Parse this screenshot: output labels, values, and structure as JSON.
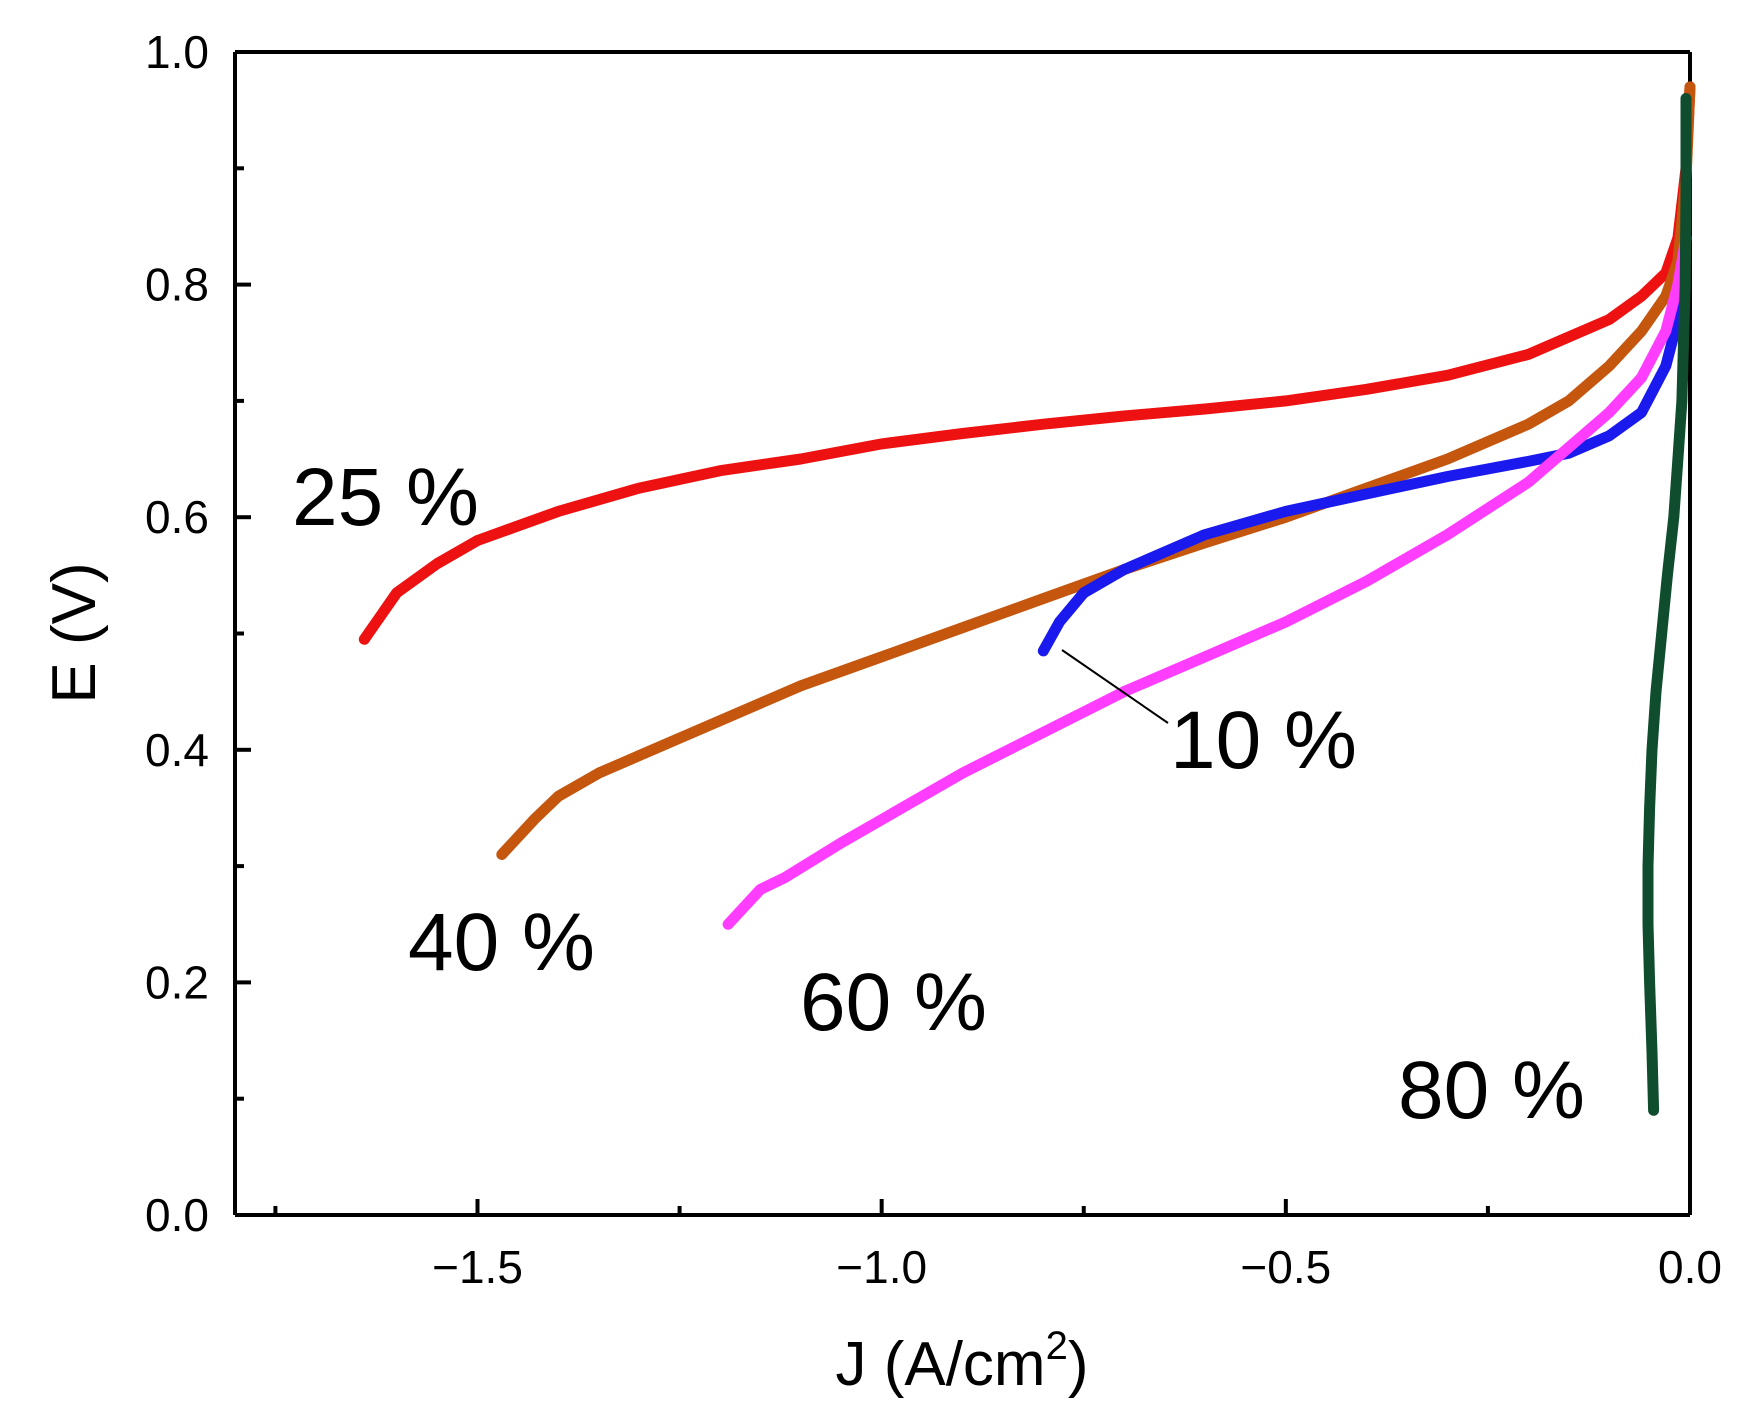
{
  "chart_data": {
    "type": "line",
    "title": "",
    "xlabel": "J (A/cm",
    "xlabel_sup": "2",
    "xlabel_suffix": ")",
    "ylabel": "E (V)",
    "xlim": [
      -1.8,
      0.0
    ],
    "ylim": [
      0.0,
      1.0
    ],
    "x_ticks": [
      -1.5,
      -1.0,
      -0.5,
      0.0
    ],
    "x_tick_labels": [
      "−1.5",
      "−1.0",
      "−0.5",
      "0.0"
    ],
    "x_minor_ticks": [
      -1.75,
      -1.25,
      -0.75,
      -0.25
    ],
    "y_ticks": [
      0.0,
      0.2,
      0.4,
      0.6,
      0.8,
      1.0
    ],
    "y_tick_labels": [
      "0.0",
      "0.2",
      "0.4",
      "0.6",
      "0.8",
      "1.0"
    ],
    "y_minor_ticks": [
      0.1,
      0.3,
      0.5,
      0.7,
      0.9
    ],
    "grid": false,
    "series": [
      {
        "name": "25 %",
        "color": "#ee1111",
        "x": [
          -1.64,
          -1.62,
          -1.6,
          -1.55,
          -1.5,
          -1.4,
          -1.3,
          -1.2,
          -1.1,
          -1.0,
          -0.9,
          -0.8,
          -0.7,
          -0.6,
          -0.5,
          -0.4,
          -0.3,
          -0.2,
          -0.15,
          -0.1,
          -0.06,
          -0.03,
          -0.015,
          -0.005,
          0.0
        ],
        "y": [
          0.495,
          0.515,
          0.535,
          0.56,
          0.58,
          0.605,
          0.625,
          0.64,
          0.65,
          0.663,
          0.672,
          0.68,
          0.687,
          0.693,
          0.7,
          0.71,
          0.722,
          0.74,
          0.755,
          0.77,
          0.79,
          0.81,
          0.84,
          0.9,
          0.97
        ]
      },
      {
        "name": "40 %",
        "color": "#c4560e",
        "x": [
          -1.47,
          -1.43,
          -1.4,
          -1.35,
          -1.3,
          -1.2,
          -1.1,
          -1.0,
          -0.9,
          -0.8,
          -0.7,
          -0.6,
          -0.5,
          -0.4,
          -0.3,
          -0.2,
          -0.15,
          -0.1,
          -0.06,
          -0.03,
          -0.015,
          -0.005,
          0.0
        ],
        "y": [
          0.31,
          0.34,
          0.36,
          0.38,
          0.395,
          0.425,
          0.455,
          0.48,
          0.505,
          0.53,
          0.555,
          0.578,
          0.6,
          0.625,
          0.65,
          0.68,
          0.7,
          0.73,
          0.76,
          0.79,
          0.82,
          0.89,
          0.97
        ]
      },
      {
        "name": "10 %",
        "color": "#1a1aee",
        "x": [
          -0.8,
          -0.78,
          -0.75,
          -0.7,
          -0.6,
          -0.5,
          -0.4,
          -0.3,
          -0.2,
          -0.15,
          -0.1,
          -0.06,
          -0.03,
          -0.015,
          -0.005
        ],
        "y": [
          0.485,
          0.51,
          0.535,
          0.555,
          0.585,
          0.605,
          0.62,
          0.635,
          0.648,
          0.655,
          0.67,
          0.69,
          0.73,
          0.77,
          0.84
        ]
      },
      {
        "name": "60 %",
        "color": "#ff3dff",
        "x": [
          -1.19,
          -1.15,
          -1.12,
          -1.05,
          -1.0,
          -0.9,
          -0.8,
          -0.7,
          -0.6,
          -0.5,
          -0.4,
          -0.3,
          -0.2,
          -0.15,
          -0.1,
          -0.06,
          -0.03,
          -0.015,
          -0.005
        ],
        "y": [
          0.25,
          0.28,
          0.29,
          0.32,
          0.34,
          0.38,
          0.415,
          0.45,
          0.48,
          0.51,
          0.545,
          0.585,
          0.63,
          0.66,
          0.69,
          0.72,
          0.76,
          0.8,
          0.84
        ]
      },
      {
        "name": "80 %",
        "color": "#0f4d2e",
        "x": [
          -0.045,
          -0.047,
          -0.05,
          -0.052,
          -0.052,
          -0.05,
          -0.047,
          -0.042,
          -0.035,
          -0.028,
          -0.02,
          -0.015,
          -0.01,
          -0.008,
          -0.006,
          -0.005,
          -0.005
        ],
        "y": [
          0.09,
          0.14,
          0.2,
          0.25,
          0.3,
          0.35,
          0.4,
          0.45,
          0.5,
          0.55,
          0.6,
          0.65,
          0.7,
          0.75,
          0.8,
          0.88,
          0.96
        ]
      }
    ],
    "annotations": [
      {
        "text": "25 %",
        "series": "25 %"
      },
      {
        "text": "40 %",
        "series": "40 %"
      },
      {
        "text": "10 %",
        "series": "10 %",
        "pointer_to": [
          -0.79,
          0.485
        ]
      },
      {
        "text": "60 %",
        "series": "60 %"
      },
      {
        "text": "80 %",
        "series": "80 %"
      }
    ]
  }
}
